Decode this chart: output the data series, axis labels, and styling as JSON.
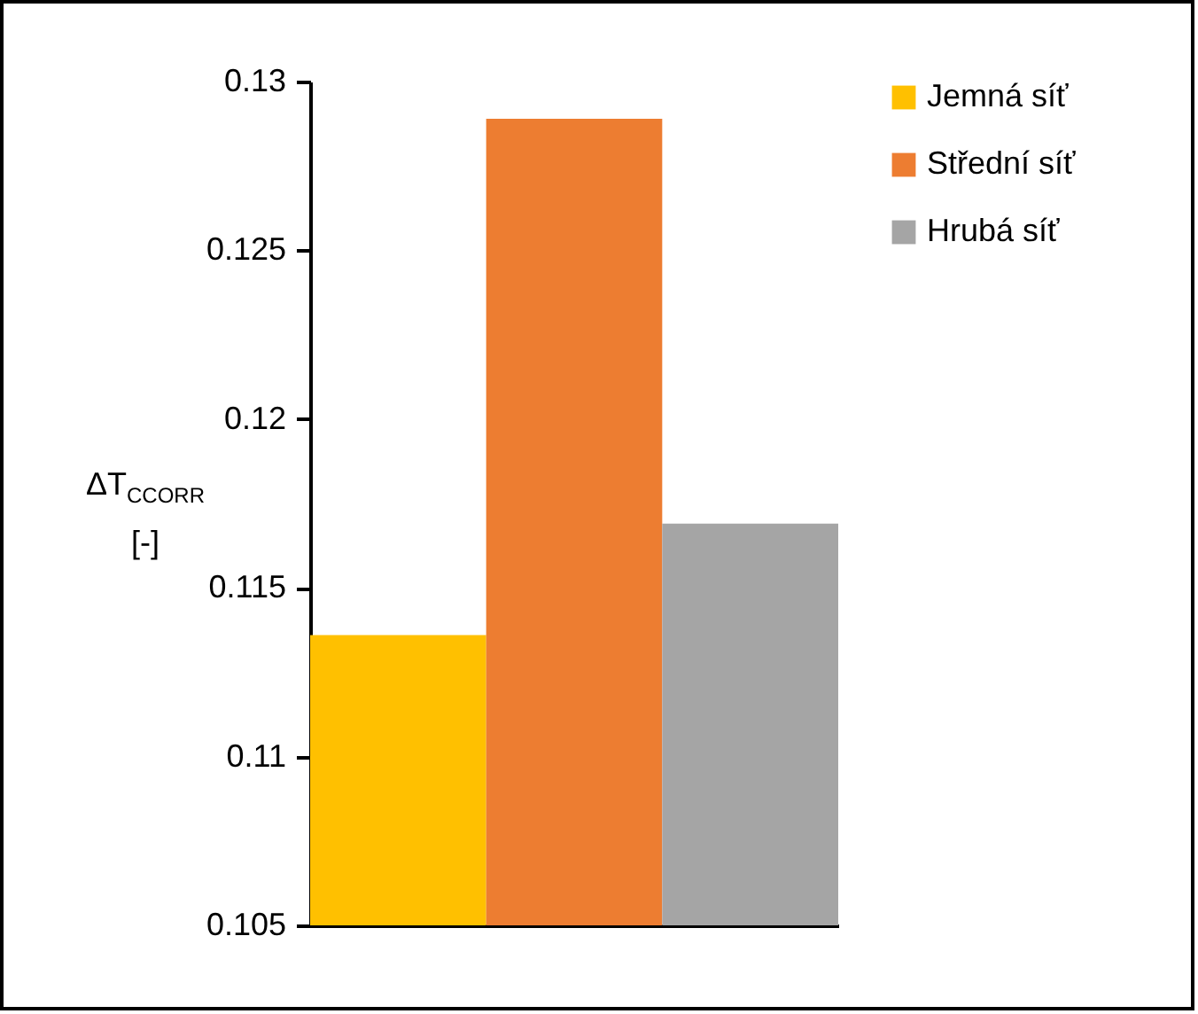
{
  "chart_data": {
    "type": "bar",
    "ylabel": "ΔT$_{CCORR}$\n[-]",
    "categories": [
      null
    ],
    "series": [
      {
        "name": "Jemná síť",
        "color": "#ffc000",
        "values": [
          0.1136
        ]
      },
      {
        "name": "Střední síť",
        "color": "#ed7d31",
        "values": [
          0.1289
        ]
      },
      {
        "name": "Hrubá síť",
        "color": "#a5a5a5",
        "values": [
          0.1169
        ]
      }
    ],
    "ylim": [
      0.105,
      0.13
    ],
    "yticks": [
      0.105,
      0.11,
      0.115,
      0.12,
      0.125,
      0.13
    ],
    "grid": false,
    "legend": "right"
  }
}
